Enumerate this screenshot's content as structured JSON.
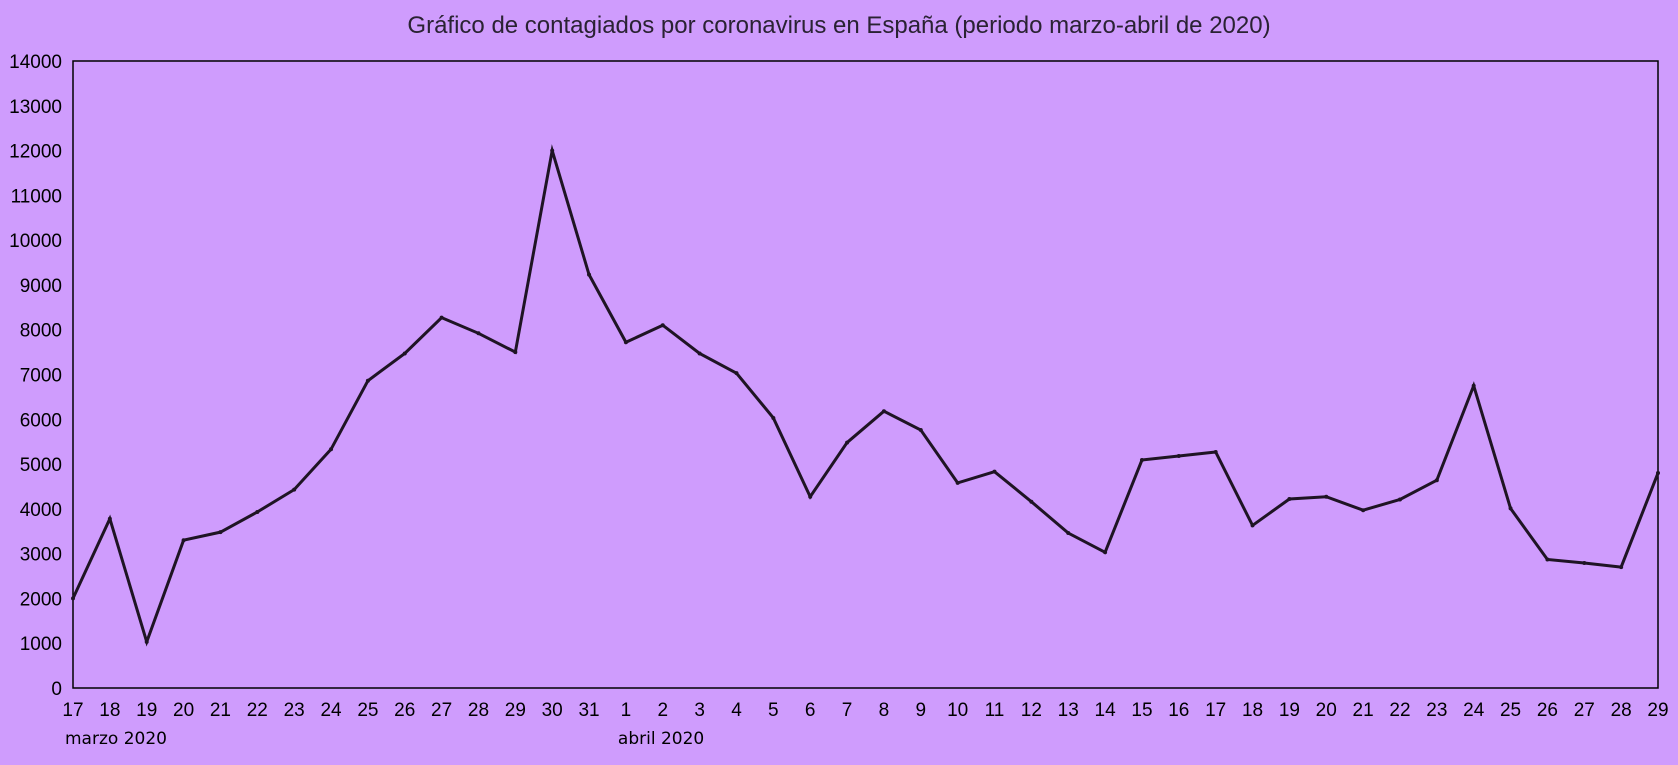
{
  "chart_data": {
    "type": "line",
    "title": "Gráfico de contagiados por coronavirus en España (periodo marzo-abril de 2020)",
    "xlabel": "",
    "ylabel": "",
    "ylim": [
      0,
      14000
    ],
    "yticks": [
      0,
      1000,
      2000,
      3000,
      4000,
      5000,
      6000,
      7000,
      8000,
      9000,
      10000,
      11000,
      12000,
      13000,
      14000
    ],
    "grid": false,
    "month_labels": [
      {
        "text": "marzo 2020",
        "at_index": 0
      },
      {
        "text": "abril 2020",
        "at_index": 15
      }
    ],
    "x": [
      "17",
      "18",
      "19",
      "20",
      "21",
      "22",
      "23",
      "24",
      "25",
      "26",
      "27",
      "28",
      "29",
      "30",
      "31",
      "1",
      "2",
      "3",
      "4",
      "5",
      "6",
      "7",
      "8",
      "9",
      "10",
      "11",
      "12",
      "13",
      "14",
      "15",
      "16",
      "17",
      "18",
      "19",
      "20",
      "21",
      "22",
      "23",
      "24",
      "25",
      "26",
      "27",
      "28",
      "29"
    ],
    "series": [
      {
        "values": [
          2000,
          3780,
          1030,
          3300,
          3480,
          3930,
          4430,
          5330,
          6860,
          7470,
          8270,
          7920,
          7500,
          12000,
          9230,
          7720,
          8100,
          7470,
          7030,
          6030,
          4270,
          5480,
          6180,
          5760,
          4580,
          4830,
          4160,
          3460,
          3030,
          5090,
          5180,
          5270,
          3630,
          4220,
          4270,
          3970,
          4210,
          4640,
          6750,
          4010,
          2870,
          2790,
          2700,
          4800
        ],
        "color": "#1f1424"
      }
    ]
  }
}
